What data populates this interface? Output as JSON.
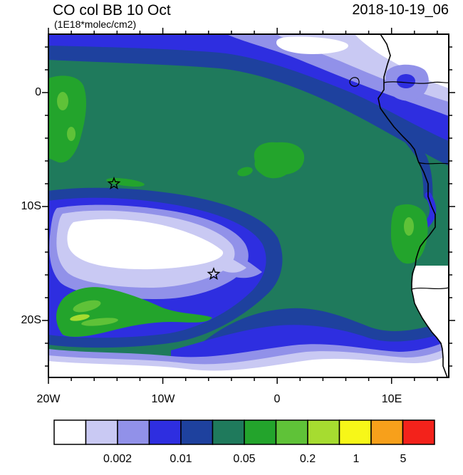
{
  "header": {
    "title": "CO col BB 10 Oct",
    "units": "(1E18*molec/cm2)",
    "timestamp": "2018-10-19_06"
  },
  "axes": {
    "y_ticks": [
      {
        "label": "0"
      },
      {
        "label": "10S"
      },
      {
        "label": "20S"
      }
    ],
    "x_ticks": [
      {
        "label": "20W"
      },
      {
        "label": "10W"
      },
      {
        "label": "0"
      },
      {
        "label": "10E"
      }
    ]
  },
  "colorbar": {
    "colors": [
      "#FFFFFF",
      "#C9C9F3",
      "#9191E9",
      "#2E2EE0",
      "#1E419E",
      "#1F7A5C",
      "#23A42C",
      "#5FC238",
      "#A6DC30",
      "#F7F718",
      "#F7A01B",
      "#F3221B"
    ],
    "tick_labels": [
      "0.002",
      "0.01",
      "0.05",
      "0.2",
      "1",
      "5"
    ]
  },
  "chart_data": {
    "type": "filled_contour_map",
    "title": "CO col BB 10 Oct",
    "units": "1E18*molec/cm2",
    "timestamp": "2018-10-19_06",
    "lon_range": [
      -20,
      15
    ],
    "lat_range": [
      -25,
      5
    ],
    "x_tick_labels": [
      "20W",
      "10W",
      "0",
      "10E"
    ],
    "y_tick_labels": [
      "0",
      "10S",
      "20S"
    ],
    "contour_levels": [
      0.002,
      0.005,
      0.01,
      0.02,
      0.05,
      0.1,
      0.2,
      0.5,
      1,
      2,
      5
    ],
    "palette": [
      "#FFFFFF",
      "#C9C9F3",
      "#9191E9",
      "#2E2EE0",
      "#1E419E",
      "#1F7A5C",
      "#23A42C",
      "#5FC238",
      "#A6DC30",
      "#F7F718",
      "#F7A01B",
      "#F3221B"
    ],
    "markers": [
      {
        "type": "star",
        "lon": -14.3,
        "lat": -8.0
      },
      {
        "type": "star",
        "lon": -5.6,
        "lat": -15.9
      }
    ],
    "features": [
      "Background CO column 0.05-0.1 (dark teal) over most of the tropical South Atlantic domain",
      "CO decreasing northward: banded gradient 0.05 -> <0.002 along the northern edge, lowest (white) in the northeast corner",
      "Closed low-CO 'eye' (<0.002, white) centered near 14W, 13S surrounded by concentric 0.002-0.05 rings with a tail extending east-southeast",
      "Biomass-burning enhancement crescent (0.1-0.5, greens) near 17W-9W, 18-22S south of the eye",
      "Enhanced patches (0.1-0.2, green) at the western edge near 2S, mid-domain near 3W 3S, and along the Angola coast near 12E 12S",
      "CO decreasing toward the southern edge with white (<0.002) along the bottom of the domain",
      "African coastline on the eastern side; land south of ~17S shown white"
    ]
  }
}
